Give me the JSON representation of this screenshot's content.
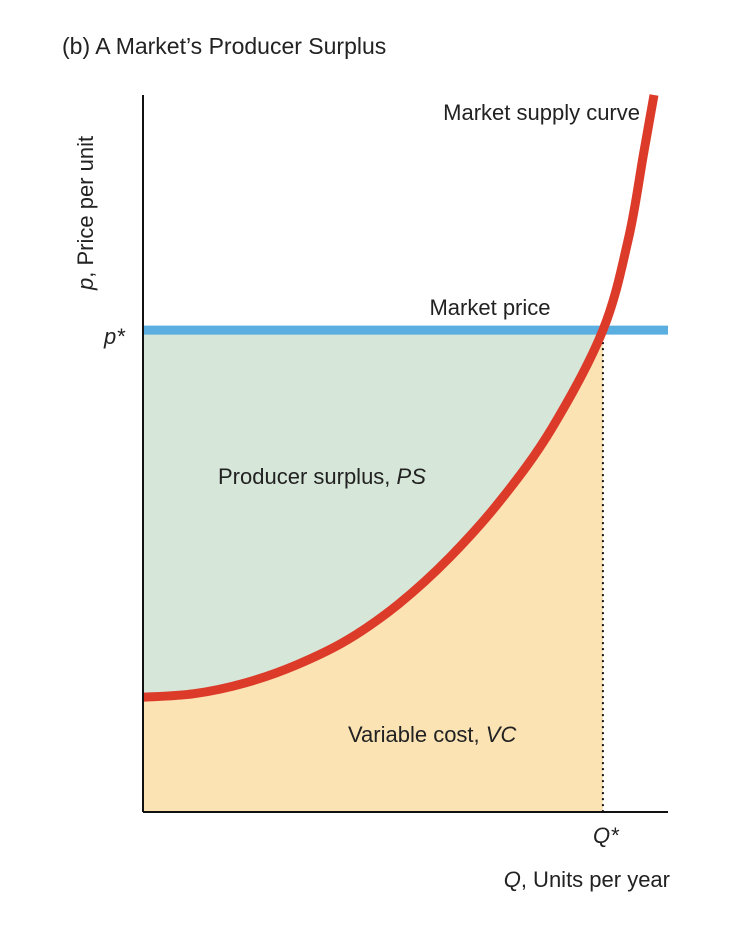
{
  "chart_data": {
    "type": "area",
    "title": "(b) A Market’s Producer Surplus",
    "ylabel": {
      "var": "p",
      "rest": ", Price per unit"
    },
    "xlabel": {
      "var": "Q",
      "rest": ", Units per year"
    },
    "y_tick_label": "p*",
    "x_tick_label": "Q*",
    "annotations": {
      "supply_curve": "Market supply curve",
      "market_price": "Market price",
      "producer_surplus": {
        "text": "Producer surplus, ",
        "var": "PS"
      },
      "variable_cost": {
        "text": "Variable cost, ",
        "var": "VC"
      }
    },
    "xlim": [
      0,
      1
    ],
    "ylim": [
      0,
      1
    ],
    "market_price": 0.672,
    "equilibrium_quantity": 0.9,
    "supply_curve": {
      "name": "Market supply curve",
      "x": [
        0,
        0.1,
        0.2,
        0.3,
        0.4,
        0.5,
        0.6,
        0.7,
        0.8,
        0.9,
        0.95,
        0.98,
        1.0
      ],
      "y": [
        0.16,
        0.165,
        0.18,
        0.205,
        0.24,
        0.29,
        0.355,
        0.435,
        0.535,
        0.672,
        0.8,
        0.92,
        1.0
      ]
    },
    "colors": {
      "supply_curve": "#dd3b2a",
      "market_price": "#5aaee0",
      "producer_surplus": "#d6e6d8",
      "variable_cost": "#fbe3b4",
      "axis": "#111111"
    }
  }
}
